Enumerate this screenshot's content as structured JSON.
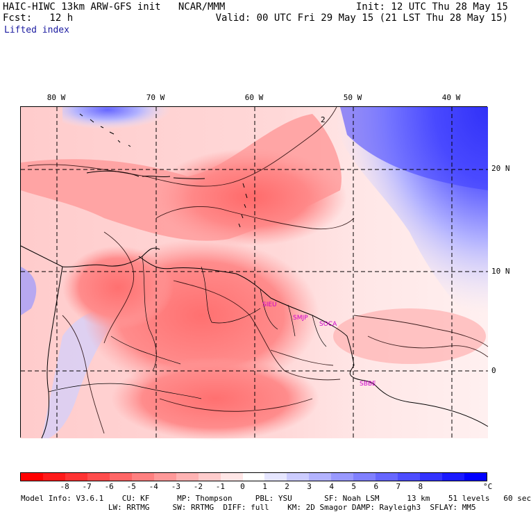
{
  "header": {
    "title_left": "HAIC-HIWC 13km ARW-GFS init   NCAR/MMM",
    "init": "Init: 12 UTC Thu 28 May 15",
    "fcst": "Fcst:   12 h",
    "valid": "Valid: 00 UTC Fri 29 May 15 (21 LST Thu 28 May 15)",
    "field": "Lifted index"
  },
  "axes": {
    "lon_labels": [
      "80 W",
      "70 W",
      "60 W",
      "50 W",
      "40 W"
    ],
    "lat_labels": [
      "20 N",
      "10 N",
      "0"
    ]
  },
  "stations": [
    "SIEU",
    "SMJP",
    "SOCA",
    "SBBE"
  ],
  "colorbar": {
    "colors": [
      "#ff0000",
      "#ff1a1a",
      "#ff3333",
      "#ff4d4d",
      "#ff6666",
      "#ff8080",
      "#ff9999",
      "#ffb3b3",
      "#ffcccc",
      "#ffe6e6",
      "#ffffff",
      "#e6e6ff",
      "#ccccff",
      "#b3b3ff",
      "#9999ff",
      "#8080ff",
      "#6666ff",
      "#4d4dff",
      "#3333ff",
      "#1a1aff",
      "#0000ff"
    ],
    "ticks": [
      "-8",
      "-7",
      "-6",
      "-5",
      "-4",
      "-3",
      "-2",
      "-1",
      "0",
      "1",
      "2",
      "3",
      "4",
      "5",
      "6",
      "7",
      "8"
    ],
    "unit": "°C"
  },
  "model_info": {
    "line1": "Model Info: V3.6.1    CU: KF      MP: Thompson     PBL: YSU       SF: Noah LSM      13 km    51 levels   60 sec",
    "line2": "                   LW: RRTMG     SW: RRTMG  DIFF: full    KM: 2D Smagor DAMP: Rayleigh3  SFLAY: MM5"
  },
  "contour_label": "2"
}
